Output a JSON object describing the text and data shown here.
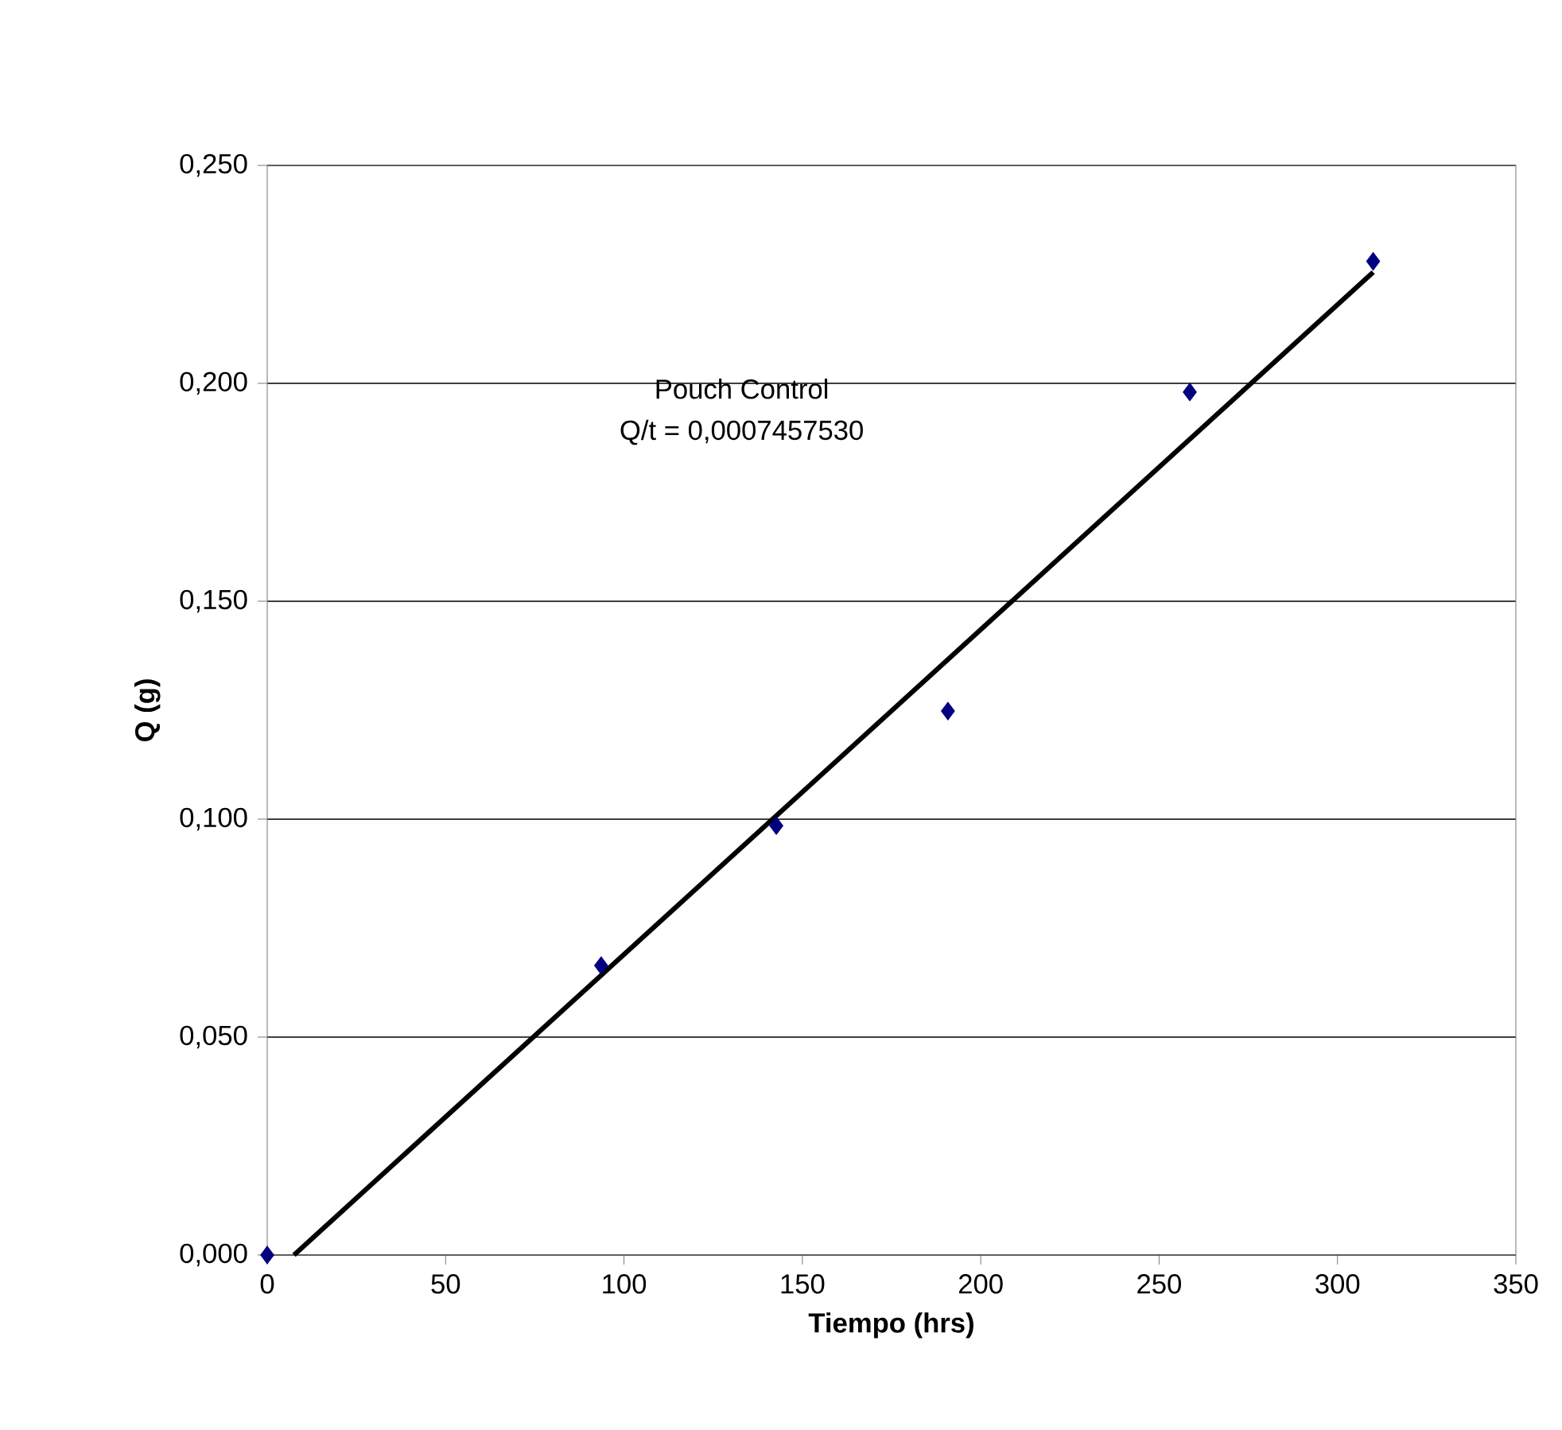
{
  "chart_data": {
    "type": "scatter",
    "xlabel": "Tiempo (hrs)",
    "ylabel": "Q (g)",
    "annotations": [
      "Pouch Control",
      "Q/t = 0,0007457530"
    ],
    "series": [
      {
        "color": "#000080",
        "marker": "diamond",
        "x": [
          0,
          93.6,
          142.7,
          190.8,
          258.6,
          310
        ],
        "values": [
          0,
          0.0664,
          0.0985,
          0.1248,
          0.198,
          0.228
        ]
      },
      {
        "type": "line",
        "color": "#000000",
        "marker": "none",
        "x": [
          7.5,
          310
        ],
        "values": [
          0,
          0.2255
        ]
      }
    ],
    "xlim": [
      0,
      350
    ],
    "xticks": [
      0,
      50,
      100,
      150,
      200,
      250,
      300,
      350
    ],
    "ylim": [
      0,
      0.25
    ],
    "yticks": [
      {
        "value": 0,
        "label": "0,000"
      },
      {
        "value": 0.05,
        "label": "0,050"
      },
      {
        "value": 0.1,
        "label": "0,100"
      },
      {
        "value": 0.15,
        "label": "0,150"
      },
      {
        "value": 0.2,
        "label": "0,200"
      },
      {
        "value": 0.25,
        "label": "0,250"
      }
    ],
    "grid": "y"
  }
}
